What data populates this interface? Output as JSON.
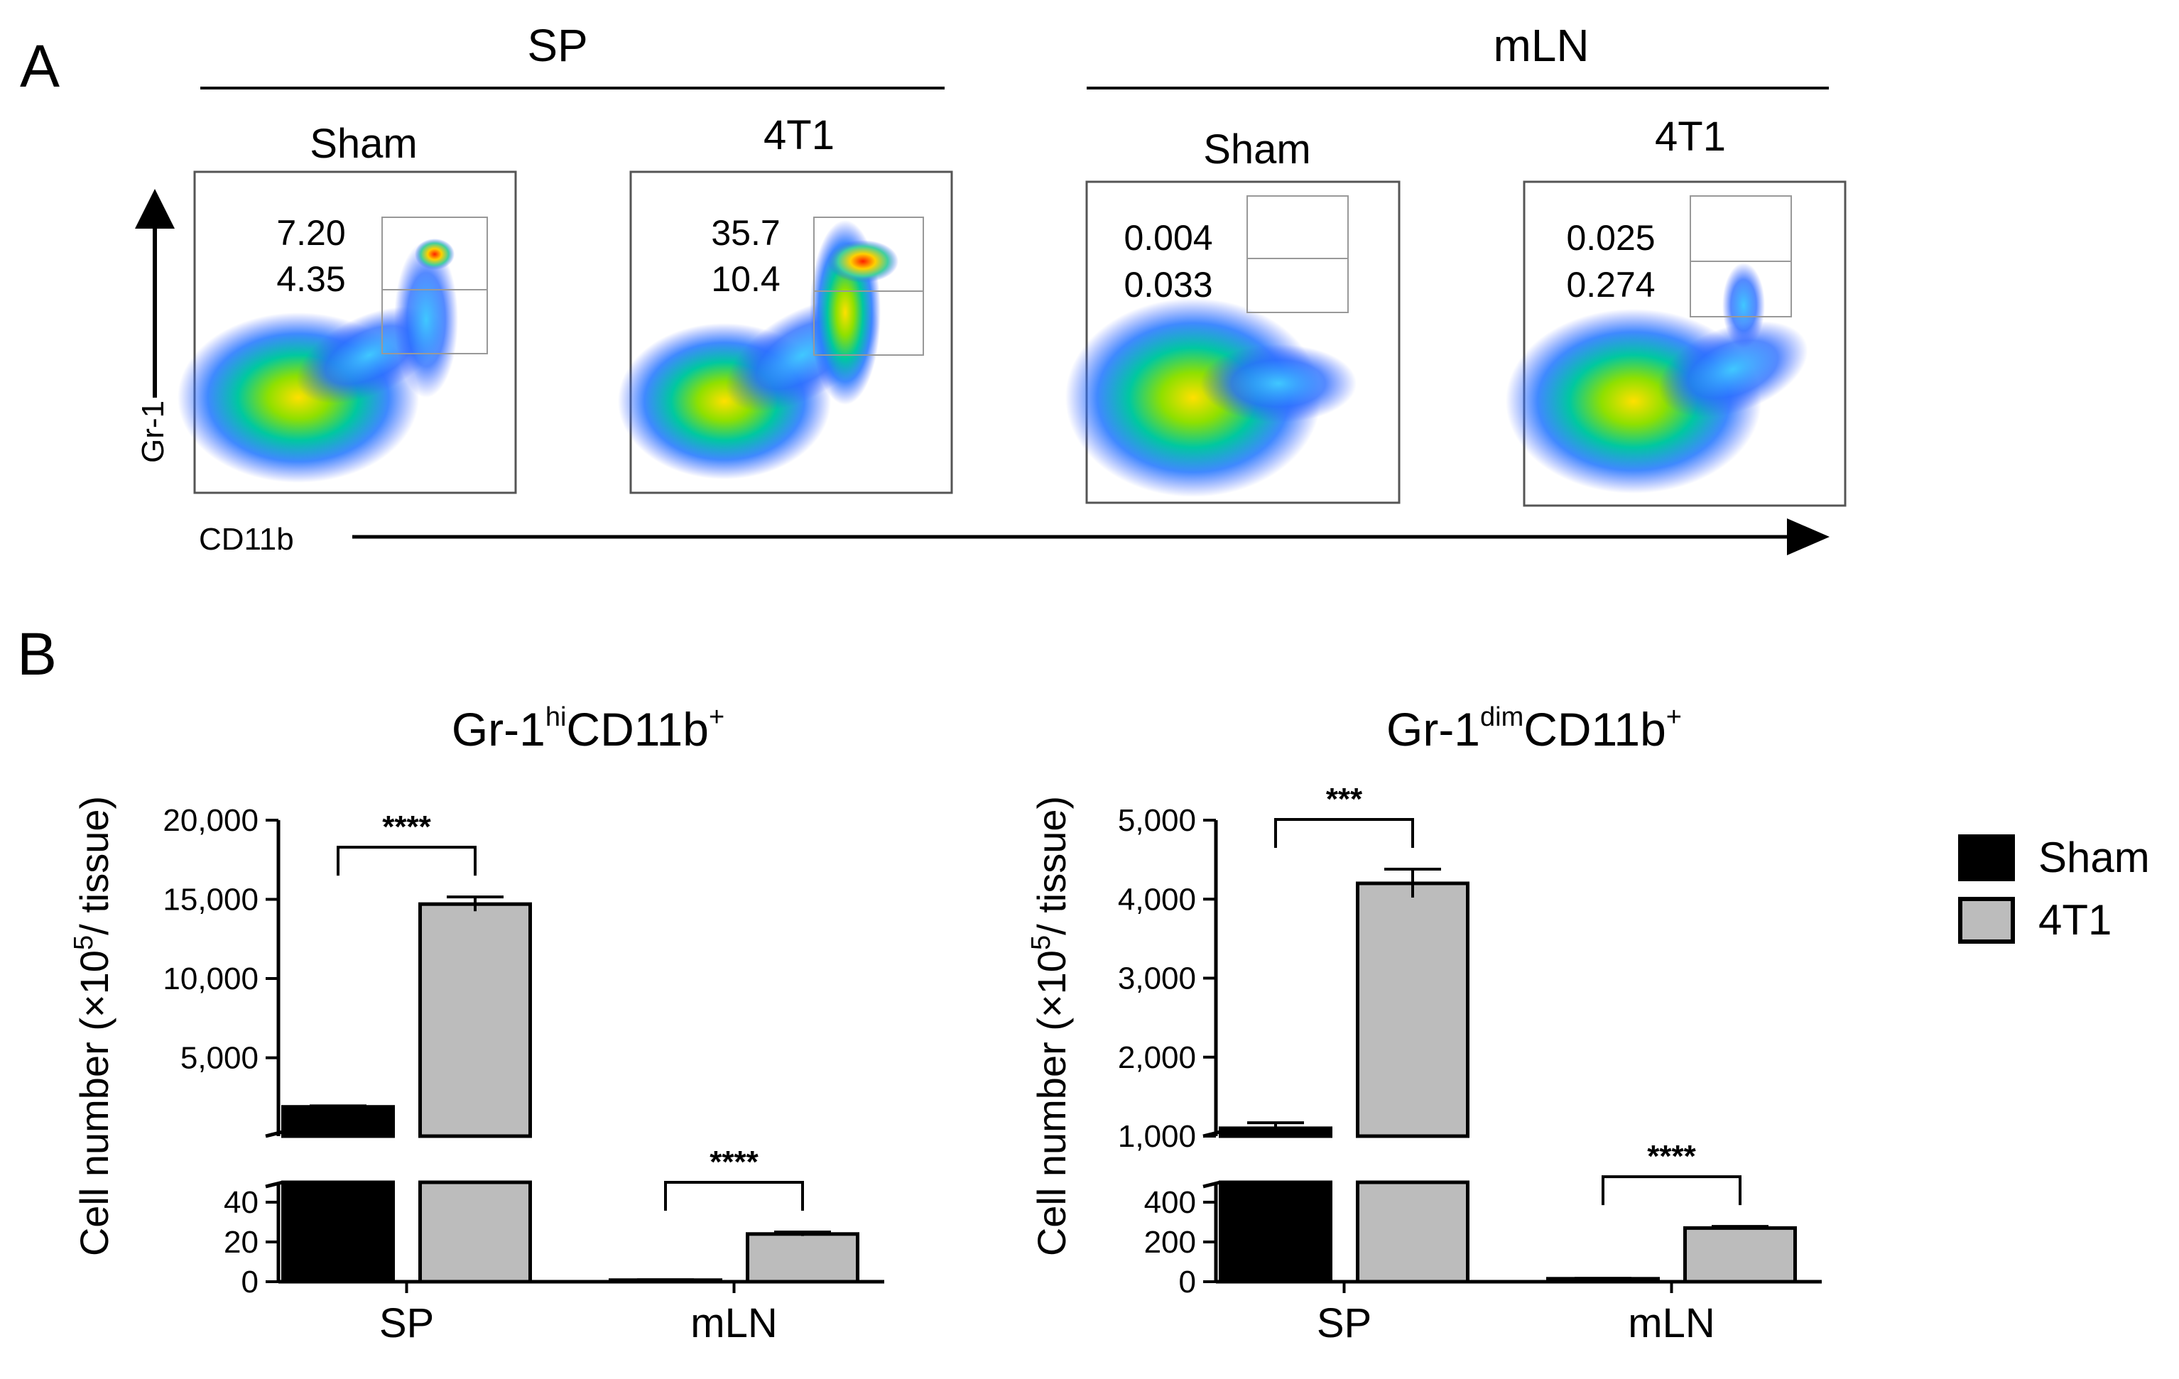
{
  "panelA": {
    "letter": "A",
    "groups": [
      {
        "label": "SP",
        "columns": [
          {
            "label": "Sham",
            "gate_hi": "7.20",
            "gate_dim": "4.35"
          },
          {
            "label": "4T1",
            "gate_hi": "35.7",
            "gate_dim": "10.4"
          }
        ]
      },
      {
        "label": "mLN",
        "columns": [
          {
            "label": "Sham",
            "gate_hi": "0.004",
            "gate_dim": "0.033"
          },
          {
            "label": "4T1",
            "gate_hi": "0.025",
            "gate_dim": "0.274"
          }
        ]
      }
    ],
    "y_axis": "Gr-1",
    "x_axis": "CD11b"
  },
  "panelB": {
    "letter": "B",
    "ylabel_pre": "Cell number (×10",
    "ylabel_sup": "5",
    "ylabel_post": "/ tissue)"
  },
  "legend": [
    {
      "label": "Sham",
      "color": "#000000"
    },
    {
      "label": "4T1",
      "color": "#bcbcbc"
    }
  ],
  "chart_data": [
    {
      "type": "bar",
      "title_main": "Gr-1",
      "title_sup1": "hi",
      "title_mid": "CD11b",
      "title_sup2": "+",
      "categories": [
        "SP",
        "mLN"
      ],
      "series": [
        {
          "name": "Sham",
          "values": [
            1900,
            0.8
          ],
          "errors": [
            60,
            0.2
          ]
        },
        {
          "name": "4T1",
          "values": [
            14700,
            24
          ],
          "errors": [
            450,
            1
          ]
        }
      ],
      "y_broken": true,
      "lower_ylim": [
        0,
        50
      ],
      "lower_ticks": [
        "0",
        "20",
        "40"
      ],
      "upper_ylim": [
        0,
        20000
      ],
      "upper_ticks": [
        "5,000",
        "10,000",
        "15,000",
        "20,000"
      ],
      "significance": [
        "****",
        "****"
      ]
    },
    {
      "type": "bar",
      "title_main": "Gr-1",
      "title_sup1": "dim",
      "title_mid": "CD11b",
      "title_sup2": "+",
      "categories": [
        "SP",
        "mLN"
      ],
      "series": [
        {
          "name": "Sham",
          "values": [
            1100,
            15
          ],
          "errors": [
            70,
            2
          ]
        },
        {
          "name": "4T1",
          "values": [
            4200,
            270
          ],
          "errors": [
            180,
            8
          ]
        }
      ],
      "y_broken": true,
      "lower_ylim": [
        0,
        500
      ],
      "lower_ticks": [
        "0",
        "200",
        "400"
      ],
      "upper_ylim": [
        1000,
        5000
      ],
      "upper_ticks": [
        "1,000",
        "2,000",
        "3,000",
        "4,000",
        "5,000"
      ],
      "significance": [
        "***",
        "****"
      ]
    }
  ]
}
